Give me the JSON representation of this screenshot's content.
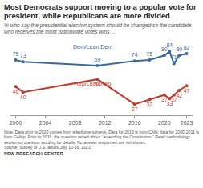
{
  "chart_data": {
    "type": "line",
    "title": "Most Democrats support moving to a popular vote for president, while Republicans are more divided",
    "subtitle": "% who say the presidential election system should be changed so the candidate who receives the most nationwide votes wins ...",
    "notes": "Note: Data prior to 2020 comes from telephone surveys. Data for 2016 is from CNN; data for 2000-2011 is from Gallup. Prior to 2016, the question asked about “amending the Constitution.” Read methodology section on question wording for details. No answer responses are not shown.",
    "source": "Source: Survey of U.S. adults July 10-16, 2023.",
    "credit": "PEW RESEARCH CENTER",
    "x": [
      2000,
      2001,
      2011,
      2016,
      2018,
      2020,
      2020.7,
      2021.3,
      2022,
      2023
    ],
    "series": [
      {
        "name": "Dem/Lean Dem",
        "color": "#3b6aa0",
        "values": [
          75,
          73,
          69,
          74,
          75,
          80,
          84,
          71,
          80,
          82
        ]
      },
      {
        "name": "Rep/Lean Rep",
        "color": "#bf3b2c",
        "values": [
          46,
          40,
          54,
          27,
          32,
          37,
          33,
          37,
          42,
          47
        ]
      }
    ],
    "xlim": [
      1999.3,
      2023.8
    ],
    "xticks": [
      2000,
      2004,
      2008,
      2012,
      2016,
      2020,
      2023
    ],
    "ylim": [
      15,
      95
    ],
    "data_labels": true,
    "tick_labels": "x",
    "grid": false,
    "marker": "circle",
    "line_style": "solid"
  }
}
